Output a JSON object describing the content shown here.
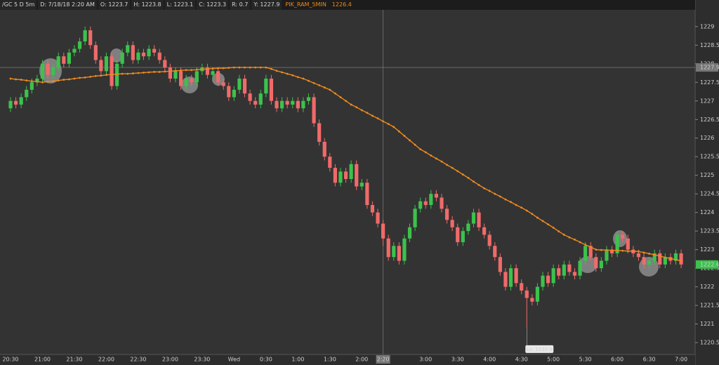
{
  "header": {
    "symbol": "/GC 5 D 5m",
    "date": "D: 7/18/18 2:20 AM",
    "open": "O: 1223.7",
    "high": "H: 1223.8",
    "low": "L: 1223.1",
    "close": "C: 1223.3",
    "range": "R: 0.7",
    "y": "Y: 1227.9",
    "study": "PIK_RAM_5MIN",
    "study_value": "1226.4"
  },
  "chart_data": {
    "type": "candlestick",
    "up_color": "#3cc24c",
    "down_color": "#f06a6a",
    "categories": [
      "20:30",
      null,
      null,
      null,
      null,
      null,
      "21:00",
      null,
      null,
      null,
      null,
      null,
      "21:30",
      null,
      null,
      null,
      null,
      null,
      "22:00",
      null,
      null,
      null,
      null,
      null,
      "22:30",
      null,
      null,
      null,
      null,
      null,
      "23:00",
      null,
      null,
      null,
      null,
      null,
      "23:30",
      null,
      null,
      null,
      null,
      null,
      "Wed",
      null,
      null,
      null,
      null,
      null,
      "0:30",
      null,
      null,
      null,
      null,
      null,
      "1:00",
      null,
      null,
      null,
      null,
      null,
      "1:30",
      null,
      null,
      null,
      null,
      null,
      "2:00",
      null,
      null,
      null,
      "2:20",
      null,
      null,
      null,
      null,
      null,
      null,
      null,
      "3:00",
      null,
      null,
      null,
      null,
      null,
      "3:30",
      null,
      null,
      null,
      null,
      null,
      "4:00",
      null,
      null,
      null,
      null,
      null,
      "4:30",
      null,
      null,
      null,
      null,
      null,
      "5:00",
      null,
      null,
      null,
      null,
      null,
      "5:30",
      null,
      null,
      null,
      null,
      null,
      "6:00",
      null,
      null,
      null,
      null,
      null,
      "6:30",
      null,
      null,
      null,
      null,
      null,
      "7:00"
    ],
    "candles": [
      [
        1226.8,
        1227.1,
        1226.7,
        1227.0
      ],
      [
        1227.0,
        1227.1,
        1226.8,
        1226.9
      ],
      [
        1226.9,
        1227.2,
        1226.8,
        1227.1
      ],
      [
        1227.1,
        1227.4,
        1227.0,
        1227.3
      ],
      [
        1227.3,
        1227.6,
        1227.2,
        1227.5
      ],
      [
        1227.5,
        1227.7,
        1227.4,
        1227.6
      ],
      [
        1227.6,
        1228.1,
        1227.5,
        1228.0
      ],
      [
        1228.0,
        1228.1,
        1227.6,
        1227.7
      ],
      [
        1227.7,
        1228.0,
        1227.6,
        1227.9
      ],
      [
        1227.9,
        1228.3,
        1227.8,
        1228.2
      ],
      [
        1228.2,
        1228.3,
        1227.9,
        1228.0
      ],
      [
        1228.0,
        1228.4,
        1227.9,
        1228.3
      ],
      [
        1228.3,
        1228.5,
        1228.2,
        1228.4
      ],
      [
        1228.4,
        1228.7,
        1228.3,
        1228.6
      ],
      [
        1228.6,
        1229.0,
        1228.5,
        1228.9
      ],
      [
        1228.9,
        1229.0,
        1228.4,
        1228.5
      ],
      [
        1228.5,
        1228.6,
        1228.0,
        1228.1
      ],
      [
        1228.1,
        1228.2,
        1227.7,
        1227.8
      ],
      [
        1227.8,
        1228.3,
        1227.7,
        1228.2
      ],
      [
        1228.2,
        1228.3,
        1227.3,
        1227.4
      ],
      [
        1227.4,
        1228.1,
        1227.3,
        1228.0
      ],
      [
        1228.0,
        1228.4,
        1227.9,
        1228.3
      ],
      [
        1228.3,
        1228.6,
        1228.2,
        1228.5
      ],
      [
        1228.5,
        1228.6,
        1228.0,
        1228.1
      ],
      [
        1228.1,
        1228.4,
        1228.0,
        1228.3
      ],
      [
        1228.3,
        1228.4,
        1228.1,
        1228.2
      ],
      [
        1228.2,
        1228.5,
        1228.1,
        1228.4
      ],
      [
        1228.4,
        1228.5,
        1228.2,
        1228.3
      ],
      [
        1228.3,
        1228.4,
        1228.0,
        1228.1
      ],
      [
        1228.1,
        1228.2,
        1227.8,
        1227.9
      ],
      [
        1227.9,
        1228.0,
        1227.5,
        1227.6
      ],
      [
        1227.6,
        1227.9,
        1227.5,
        1227.8
      ],
      [
        1227.8,
        1227.9,
        1227.3,
        1227.4
      ],
      [
        1227.4,
        1227.7,
        1227.3,
        1227.6
      ],
      [
        1227.6,
        1227.7,
        1227.4,
        1227.5
      ],
      [
        1227.5,
        1227.9,
        1227.4,
        1227.8
      ],
      [
        1227.8,
        1228.0,
        1227.7,
        1227.9
      ],
      [
        1227.9,
        1228.0,
        1227.6,
        1227.7
      ],
      [
        1227.7,
        1227.9,
        1227.6,
        1227.8
      ],
      [
        1227.8,
        1227.9,
        1227.4,
        1227.5
      ],
      [
        1227.5,
        1227.6,
        1227.3,
        1227.4
      ],
      [
        1227.4,
        1227.5,
        1227.0,
        1227.1
      ],
      [
        1227.1,
        1227.4,
        1227.0,
        1227.3
      ],
      [
        1227.3,
        1227.7,
        1227.2,
        1227.6
      ],
      [
        1227.6,
        1227.7,
        1227.1,
        1227.2
      ],
      [
        1227.2,
        1227.3,
        1226.9,
        1227.0
      ],
      [
        1227.0,
        1227.1,
        1226.8,
        1226.9
      ],
      [
        1226.9,
        1227.3,
        1226.8,
        1227.2
      ],
      [
        1227.2,
        1227.7,
        1227.1,
        1227.6
      ],
      [
        1227.6,
        1227.7,
        1226.9,
        1227.0
      ],
      [
        1227.0,
        1227.1,
        1226.7,
        1226.8
      ],
      [
        1226.8,
        1227.1,
        1226.7,
        1227.0
      ],
      [
        1227.0,
        1227.1,
        1226.8,
        1226.9
      ],
      [
        1226.9,
        1227.1,
        1226.8,
        1227.0
      ],
      [
        1227.0,
        1227.1,
        1226.7,
        1226.8
      ],
      [
        1226.8,
        1227.1,
        1226.7,
        1227.0
      ],
      [
        1227.0,
        1227.2,
        1226.9,
        1227.1
      ],
      [
        1227.1,
        1227.2,
        1226.3,
        1226.4
      ],
      [
        1226.4,
        1226.5,
        1225.8,
        1225.9
      ],
      [
        1225.9,
        1226.0,
        1225.4,
        1225.5
      ],
      [
        1225.5,
        1225.6,
        1225.1,
        1225.2
      ],
      [
        1225.2,
        1225.3,
        1224.7,
        1224.8
      ],
      [
        1224.8,
        1225.2,
        1224.7,
        1225.1
      ],
      [
        1225.1,
        1225.2,
        1224.8,
        1224.9
      ],
      [
        1224.9,
        1225.4,
        1224.8,
        1225.3
      ],
      [
        1225.3,
        1225.4,
        1224.6,
        1224.7
      ],
      [
        1224.7,
        1224.9,
        1224.6,
        1224.8
      ],
      [
        1224.8,
        1224.9,
        1224.1,
        1224.2
      ],
      [
        1224.2,
        1224.3,
        1223.9,
        1224.0
      ],
      [
        1224.0,
        1224.1,
        1223.6,
        1223.7
      ],
      [
        1223.7,
        1223.8,
        1223.1,
        1223.3
      ],
      [
        1223.3,
        1223.4,
        1222.7,
        1222.8
      ],
      [
        1222.8,
        1223.2,
        1222.7,
        1223.1
      ],
      [
        1223.1,
        1223.2,
        1222.6,
        1222.7
      ],
      [
        1222.7,
        1223.4,
        1222.6,
        1223.3
      ],
      [
        1223.3,
        1223.7,
        1223.2,
        1223.6
      ],
      [
        1223.6,
        1224.2,
        1223.5,
        1224.1
      ],
      [
        1224.1,
        1224.4,
        1224.0,
        1224.3
      ],
      [
        1224.3,
        1224.4,
        1224.1,
        1224.2
      ],
      [
        1224.2,
        1224.6,
        1224.1,
        1224.5
      ],
      [
        1224.5,
        1224.6,
        1224.3,
        1224.4
      ],
      [
        1224.4,
        1224.5,
        1224.0,
        1224.1
      ],
      [
        1224.1,
        1224.2,
        1223.7,
        1223.8
      ],
      [
        1223.8,
        1223.9,
        1223.5,
        1223.6
      ],
      [
        1223.6,
        1223.7,
        1223.1,
        1223.2
      ],
      [
        1223.2,
        1223.6,
        1223.1,
        1223.5
      ],
      [
        1223.5,
        1223.8,
        1223.4,
        1223.7
      ],
      [
        1223.7,
        1224.1,
        1223.6,
        1224.0
      ],
      [
        1224.0,
        1224.1,
        1223.5,
        1223.6
      ],
      [
        1223.6,
        1223.7,
        1223.3,
        1223.4
      ],
      [
        1223.4,
        1223.5,
        1223.0,
        1223.1
      ],
      [
        1223.1,
        1223.2,
        1222.7,
        1222.8
      ],
      [
        1222.8,
        1222.9,
        1222.3,
        1222.4
      ],
      [
        1222.4,
        1222.5,
        1221.9,
        1222.0
      ],
      [
        1222.0,
        1222.6,
        1221.9,
        1222.5
      ],
      [
        1222.5,
        1222.6,
        1222.0,
        1222.1
      ],
      [
        1222.1,
        1222.2,
        1221.8,
        1221.9
      ],
      [
        1221.9,
        1222.0,
        1220.9,
        1221.7
      ],
      [
        1221.7,
        1221.8,
        1221.5,
        1221.6
      ],
      [
        1221.6,
        1222.1,
        1221.5,
        1222.0
      ],
      [
        1222.0,
        1222.4,
        1221.9,
        1222.3
      ],
      [
        1222.3,
        1222.4,
        1222.0,
        1222.1
      ],
      [
        1222.1,
        1222.6,
        1222.0,
        1222.5
      ],
      [
        1222.5,
        1222.6,
        1222.2,
        1222.3
      ],
      [
        1222.3,
        1222.7,
        1222.2,
        1222.6
      ],
      [
        1222.6,
        1222.7,
        1222.3,
        1222.4
      ],
      [
        1222.4,
        1222.5,
        1222.2,
        1222.3
      ],
      [
        1222.3,
        1222.8,
        1222.2,
        1222.7
      ],
      [
        1222.7,
        1223.2,
        1222.6,
        1223.1
      ],
      [
        1223.1,
        1223.2,
        1222.7,
        1222.8
      ],
      [
        1222.8,
        1222.9,
        1222.4,
        1222.5
      ],
      [
        1222.5,
        1222.8,
        1222.4,
        1222.7
      ],
      [
        1222.7,
        1223.1,
        1222.6,
        1223.0
      ],
      [
        1223.0,
        1223.1,
        1222.8,
        1222.9
      ],
      [
        1222.9,
        1223.5,
        1222.8,
        1223.4
      ],
      [
        1223.4,
        1223.5,
        1223.2,
        1223.3
      ],
      [
        1223.3,
        1223.4,
        1222.9,
        1223.0
      ],
      [
        1223.0,
        1223.1,
        1222.8,
        1222.9
      ],
      [
        1222.9,
        1223.0,
        1222.7,
        1222.8
      ],
      [
        1222.8,
        1222.9,
        1222.5,
        1222.6
      ],
      [
        1222.6,
        1222.8,
        1222.5,
        1222.7
      ],
      [
        1222.7,
        1223.0,
        1222.6,
        1222.9
      ],
      [
        1222.9,
        1223.0,
        1222.5,
        1222.6
      ],
      [
        1222.6,
        1222.9,
        1222.5,
        1222.8
      ],
      [
        1222.8,
        1222.9,
        1222.6,
        1222.7
      ],
      [
        1222.7,
        1223.0,
        1222.6,
        1222.9
      ],
      [
        1222.9,
        1223.0,
        1222.5,
        1222.6
      ]
    ],
    "series": [
      {
        "name": "PIK_RAM_5MIN",
        "color": "#f08a1c",
        "values": [
          1227.6,
          1227.58,
          1227.57,
          1227.55,
          1227.53,
          1227.52,
          1227.5,
          1227.52,
          1227.53,
          1227.55,
          1227.57,
          1227.58,
          1227.6,
          1227.62,
          1227.63,
          1227.65,
          1227.67,
          1227.68,
          1227.7,
          1227.71,
          1227.72,
          1227.73,
          1227.73,
          1227.74,
          1227.75,
          1227.76,
          1227.77,
          1227.78,
          1227.78,
          1227.79,
          1227.8,
          1227.81,
          1227.82,
          1227.83,
          1227.83,
          1227.84,
          1227.85,
          1227.86,
          1227.87,
          1227.88,
          1227.88,
          1227.89,
          1227.9,
          1227.9,
          1227.9,
          1227.9,
          1227.9,
          1227.9,
          1227.9,
          1227.86,
          1227.81,
          1227.77,
          1227.73,
          1227.69,
          1227.64,
          1227.6,
          1227.54,
          1227.48,
          1227.42,
          1227.36,
          1227.3,
          1227.2,
          1227.1,
          1227.0,
          1226.9,
          1226.83,
          1226.75,
          1226.68,
          1226.6,
          1226.53,
          1226.45,
          1226.38,
          1226.3,
          1226.18,
          1226.06,
          1225.94,
          1225.82,
          1225.7,
          1225.62,
          1225.53,
          1225.45,
          1225.37,
          1225.28,
          1225.2,
          1225.11,
          1225.02,
          1224.93,
          1224.83,
          1224.74,
          1224.65,
          1224.58,
          1224.5,
          1224.43,
          1224.35,
          1224.28,
          1224.2,
          1224.13,
          1224.05,
          1223.96,
          1223.86,
          1223.77,
          1223.68,
          1223.59,
          1223.49,
          1223.4,
          1223.33,
          1223.27,
          1223.2,
          1223.13,
          1223.07,
          1223.0,
          1222.99,
          1222.99,
          1222.98,
          1222.98,
          1222.97,
          1222.96,
          1222.96,
          1222.95,
          1222.92,
          1222.89,
          1222.86,
          1222.83,
          1222.79,
          1222.76,
          1222.73,
          1222.7
        ]
      }
    ],
    "ylim": [
      1220.18,
      1229.45
    ],
    "yticks": [
      1229,
      1228.5,
      1228,
      1227.5,
      1227,
      1226.5,
      1226,
      1225.5,
      1225,
      1224.5,
      1224,
      1223.5,
      1223,
      1222.5,
      1222,
      1221.5,
      1221,
      1220.5
    ],
    "crosshair": {
      "x": "2:20",
      "y": 1227.9
    },
    "last_price": 1222.6,
    "annotation": "Lo: 1220.9",
    "grid": false
  }
}
